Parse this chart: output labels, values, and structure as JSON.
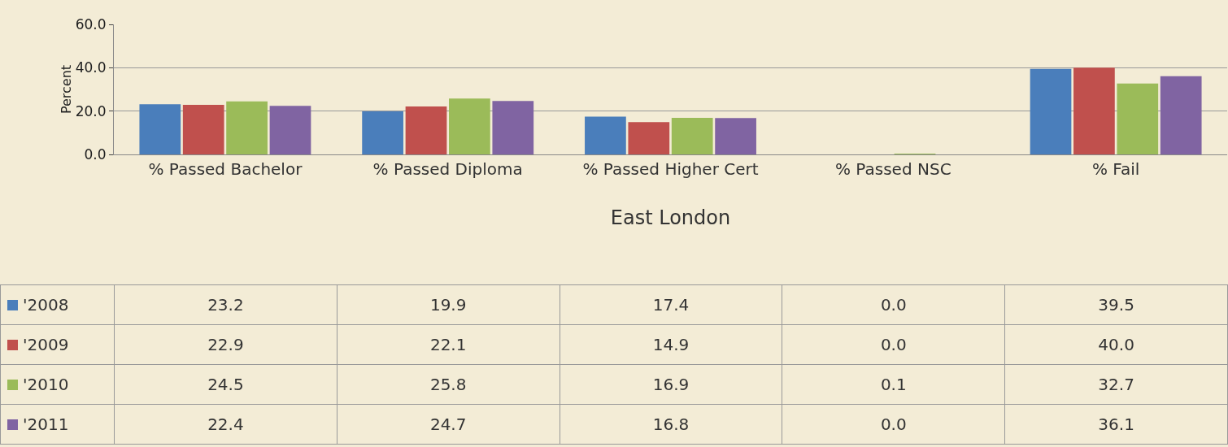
{
  "chart_data": {
    "type": "bar",
    "ylabel": "Percent",
    "xlabel": "East London",
    "categories": [
      "% Passed Bachelor",
      "% Passed Diploma",
      "% Passed Higher Cert",
      "% Passed NSC",
      "% Fail"
    ],
    "series": [
      {
        "name": "'2008",
        "color": "#4a7ebb",
        "values": [
          23.2,
          19.9,
          17.4,
          0.0,
          39.5
        ],
        "value_labels": [
          "23.2",
          "19.9",
          "17.4",
          "0.0",
          "39.5"
        ]
      },
      {
        "name": "'2009",
        "color": "#c0504d",
        "values": [
          22.9,
          22.1,
          14.9,
          0.0,
          40.0
        ],
        "value_labels": [
          "22.9",
          "22.1",
          "14.9",
          "0.0",
          "40.0"
        ]
      },
      {
        "name": "'2010",
        "color": "#9bbb59",
        "values": [
          24.5,
          25.8,
          16.9,
          0.1,
          32.7
        ],
        "value_labels": [
          "24.5",
          "25.8",
          "16.9",
          "0.1",
          "32.7"
        ]
      },
      {
        "name": "'2011",
        "color": "#8064a2",
        "values": [
          22.4,
          24.7,
          16.8,
          0.0,
          36.1
        ],
        "value_labels": [
          "22.4",
          "24.7",
          "16.8",
          "0.0",
          "36.1"
        ]
      }
    ],
    "ylim": [
      0,
      60
    ],
    "yticks": [
      {
        "value": 0,
        "label": "0.0"
      },
      {
        "value": 20,
        "label": "20.0"
      },
      {
        "value": 40,
        "label": "40.0"
      },
      {
        "value": 60,
        "label": "60.0"
      }
    ],
    "grid": true,
    "legend": "bottom"
  }
}
